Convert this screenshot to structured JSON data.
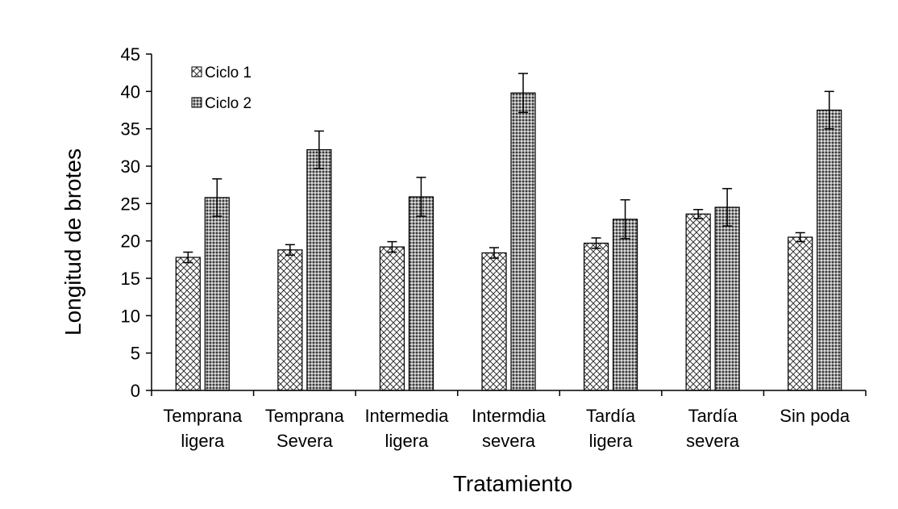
{
  "chart_data": {
    "type": "bar",
    "title": "",
    "xlabel": "Tratamiento",
    "ylabel": "Longitud de brotes",
    "ylim": [
      0,
      45
    ],
    "yticks": [
      0,
      5,
      10,
      15,
      20,
      25,
      30,
      35,
      40,
      45
    ],
    "grid": false,
    "legend_position": "top-left",
    "categories": [
      [
        "Temprana",
        "ligera"
      ],
      [
        "Temprana",
        "Severa"
      ],
      [
        "Intermedia",
        "ligera"
      ],
      [
        "Intermdia",
        "severa"
      ],
      [
        "Tardía",
        "ligera"
      ],
      [
        "Tardía",
        "severa"
      ],
      [
        "Sin poda"
      ]
    ],
    "series": [
      {
        "name": "Ciclo 1",
        "pattern": "lattice",
        "values": [
          17.8,
          18.8,
          19.2,
          18.4,
          19.7,
          23.6,
          20.5
        ],
        "errors": [
          0.7,
          0.7,
          0.7,
          0.7,
          0.7,
          0.6,
          0.6
        ]
      },
      {
        "name": "Ciclo 2",
        "pattern": "dots",
        "values": [
          25.8,
          32.2,
          25.9,
          39.8,
          22.9,
          24.5,
          37.5
        ],
        "errors": [
          2.5,
          2.5,
          2.6,
          2.6,
          2.6,
          2.5,
          2.5
        ]
      }
    ]
  }
}
